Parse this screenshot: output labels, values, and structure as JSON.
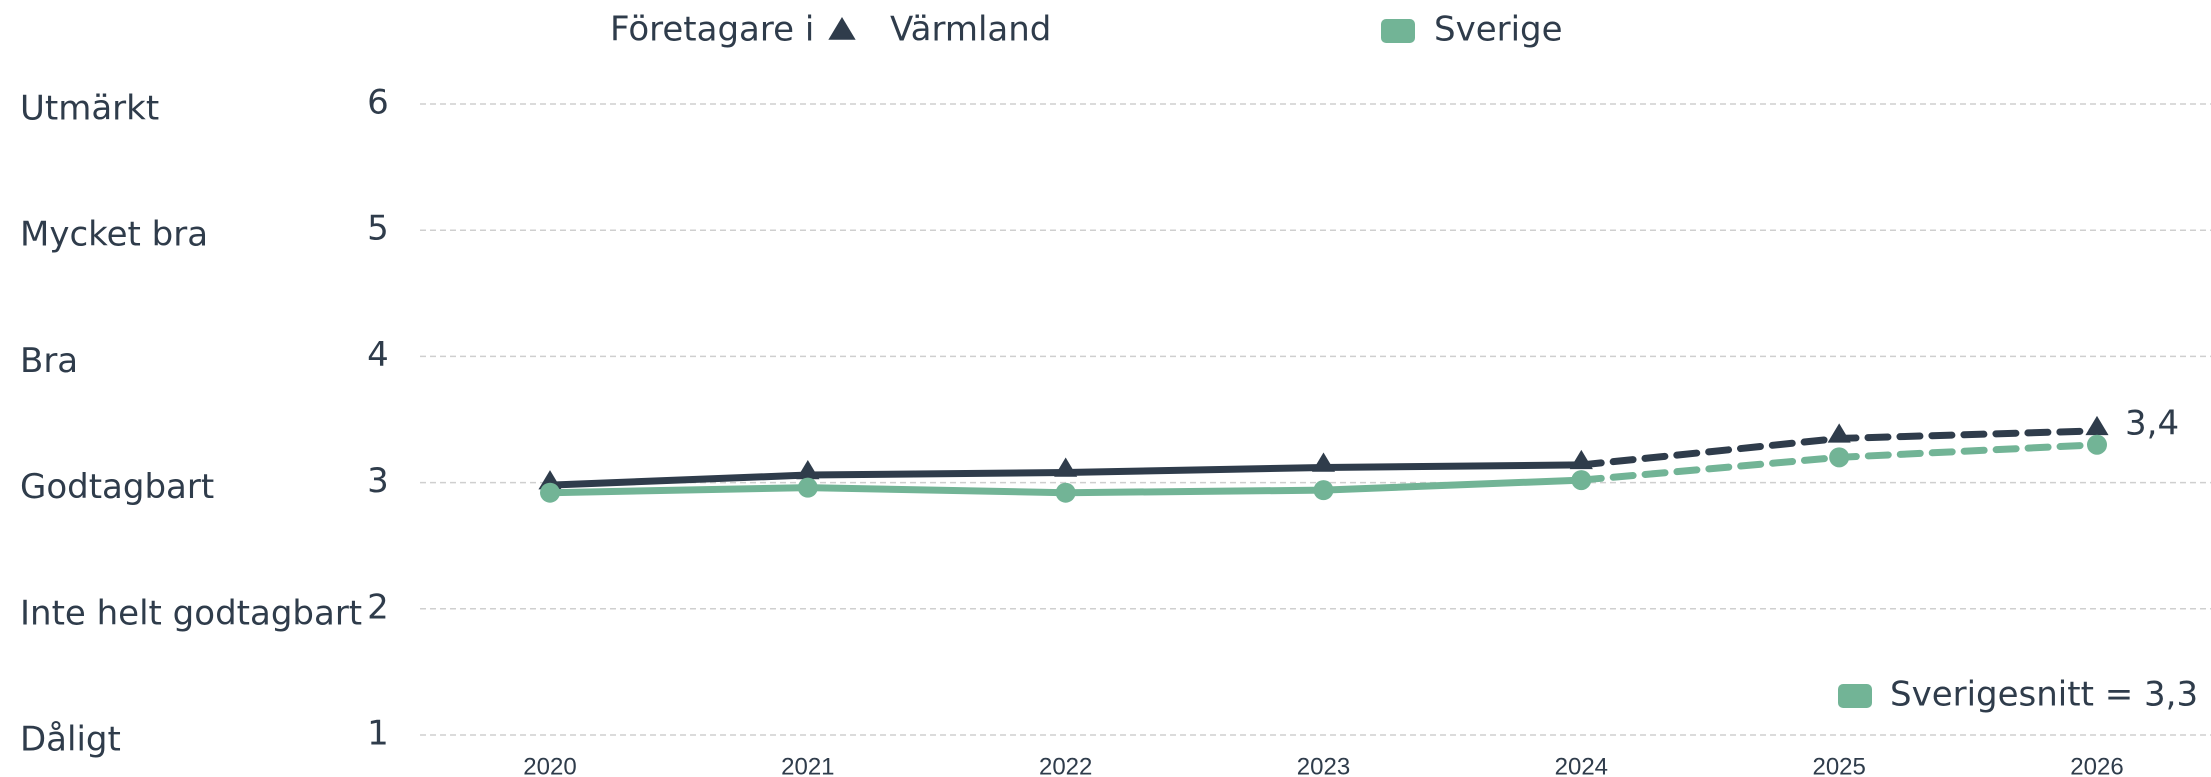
{
  "chart_data": {
    "type": "line",
    "legend_title": "Företagare i",
    "categories": [
      "2020",
      "2021",
      "2022",
      "2023",
      "2024",
      "2025",
      "2026"
    ],
    "series": [
      {
        "name": "Värmland",
        "color": "#2f3c4b",
        "marker": "triangle",
        "values": [
          2.98,
          3.06,
          3.08,
          3.12,
          3.14,
          3.35,
          3.41
        ],
        "value_labels": [
          null,
          null,
          null,
          null,
          null,
          null,
          "3,4"
        ]
      },
      {
        "name": "Sverige",
        "color": "#72b496",
        "marker": "circle",
        "values": [
          2.92,
          2.96,
          2.92,
          2.94,
          3.02,
          3.2,
          3.3
        ]
      }
    ],
    "dashed_from": "2024",
    "ylim": [
      1,
      6
    ],
    "yticks": [
      1,
      2,
      3,
      4,
      5,
      6
    ],
    "ytick_names": [
      "Dåligt",
      "Inte helt godtagbart",
      "Godtagbart",
      "Bra",
      "Mycket bra",
      "Utmärkt"
    ],
    "annotation": "Sverigesnitt = 3,3",
    "annotation_color": "#72b496",
    "grid": true
  }
}
